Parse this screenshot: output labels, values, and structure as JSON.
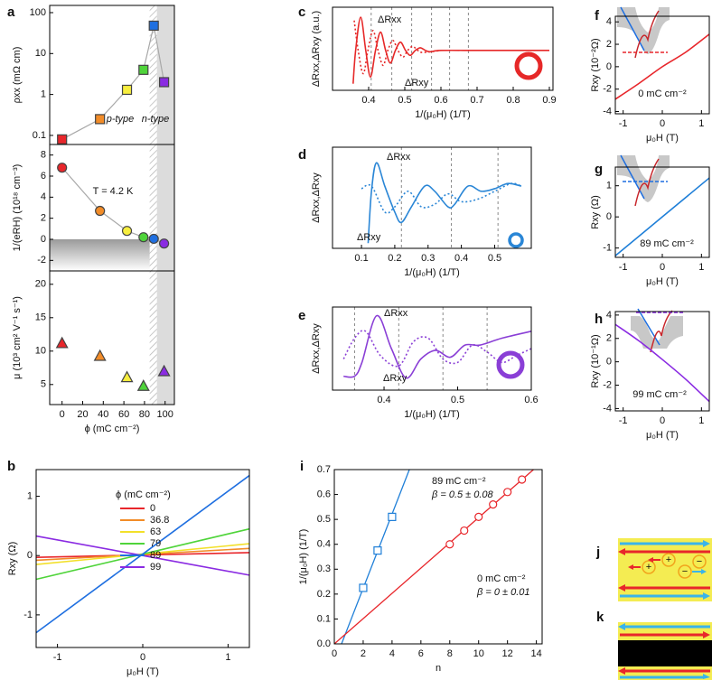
{
  "chart_data": [
    {
      "type": "scatter",
      "panel": "a",
      "ylabel": "ρxx (mΩ cm)",
      "log": true,
      "connect": true,
      "marker": "square",
      "x": [
        0,
        36.8,
        63,
        79,
        89,
        99
      ],
      "values": [
        0.08,
        0.25,
        1.3,
        4,
        48,
        2
      ],
      "colors": [
        "#e8262b",
        "#f28c28",
        "#f7ee3e",
        "#4fd43a",
        "#1f6fe0",
        "#8a2be2"
      ],
      "xlim": [
        -12,
        109
      ],
      "ylim": [
        0.06,
        150
      ],
      "yticks": [
        0.1,
        1,
        10,
        100
      ],
      "hatched": [
        85,
        92
      ],
      "shaded": [
        92,
        109
      ],
      "annotations": [
        "p-type",
        "n-type"
      ],
      "annotation_colors": [
        "#9c1c1c",
        "#1a2f8a"
      ]
    },
    {
      "type": "scatter",
      "ylabel": "1/(eRH) (10¹⁸ cm⁻³)",
      "connect": true,
      "marker": "circle",
      "x": [
        0,
        36.8,
        63,
        79,
        89,
        99
      ],
      "values": [
        6.8,
        2.7,
        0.8,
        0.2,
        0.05,
        -0.4
      ],
      "colors": [
        "#e8262b",
        "#f28c28",
        "#f7ee3e",
        "#4fd43a",
        "#1f6fe0",
        "#8a2be2"
      ],
      "xlim": [
        -12,
        109
      ],
      "ylim": [
        -3,
        9
      ],
      "yticks": [
        -2,
        0,
        2,
        4,
        6,
        8
      ],
      "hatched": [
        85,
        92
      ],
      "shaded": [
        92,
        109
      ],
      "annotations": [
        "T = 4.2 K"
      ]
    },
    {
      "type": "scatter",
      "ylabel": "μ (10³ cm² V⁻¹ s⁻¹)",
      "xlabel": "ϕ (mC cm⁻²)",
      "marker": "triangle",
      "x": [
        0,
        36.8,
        63,
        79,
        89,
        99
      ],
      "values": [
        11.2,
        9.3,
        6.1,
        4.8,
        null,
        7
      ],
      "colors": [
        "#e8262b",
        "#f28c28",
        "#f7ee3e",
        "#4fd43a",
        "#1f6fe0",
        "#8a2be2"
      ],
      "xlim": [
        -12,
        109
      ],
      "xticks": [
        0,
        20,
        40,
        60,
        80,
        100
      ],
      "ylim": [
        2,
        22
      ],
      "yticks": [
        5,
        10,
        15,
        20
      ],
      "hatched": [
        85,
        92
      ],
      "shaded": [
        92,
        109
      ]
    },
    {
      "type": "line",
      "panel": "c",
      "xlabel": "1/(μ₀H) (1/T)",
      "ylabel": "ΔRxx,ΔRxy (a.u.)",
      "xlim": [
        0.3,
        0.91
      ],
      "xticks": [
        0.4,
        0.5,
        0.6,
        0.7,
        0.8,
        0.9
      ],
      "ylim": [
        -1.2,
        1.3
      ],
      "guides": [
        0.407,
        0.464,
        0.519,
        0.574,
        0.624,
        0.676
      ],
      "series": [
        {
          "name": "ΔRxx",
          "color": "#e62828",
          "style": "solid",
          "x": [
            0.357,
            0.364,
            0.378,
            0.392,
            0.405,
            0.419,
            0.433,
            0.447,
            0.46,
            0.474,
            0.488,
            0.502,
            0.515,
            0.529,
            0.543,
            0.557,
            0.57,
            0.6,
            0.7,
            0.8,
            0.9
          ],
          "values": [
            -1.0,
            0,
            1.0,
            0,
            -0.8,
            0,
            0.55,
            0,
            -0.38,
            0,
            0.25,
            0,
            -0.15,
            0,
            0.08,
            0,
            -0.04,
            0,
            0,
            0,
            0
          ]
        },
        {
          "name": "ΔRxy",
          "color": "#e62828",
          "style": "dotted",
          "x": [
            0.36,
            0.371,
            0.385,
            0.398,
            0.412,
            0.426,
            0.44,
            0.453,
            0.467,
            0.481,
            0.495,
            0.508,
            0.522,
            0.536,
            0.55,
            0.6
          ],
          "values": [
            0.9,
            0,
            -0.7,
            0,
            0.6,
            0,
            -0.45,
            0,
            0.3,
            0,
            -0.2,
            0,
            0.12,
            0,
            -0.06,
            0
          ]
        }
      ]
    },
    {
      "type": "line",
      "panel": "d",
      "xlabel": "1/(μ₀H) (1/T)",
      "ylabel": "ΔRxx,ΔRxy",
      "xlim": [
        0.013,
        0.61
      ],
      "xticks": [
        0.1,
        0.2,
        0.3,
        0.4,
        0.5
      ],
      "ylim": [
        -1.1,
        0.85
      ],
      "guides": [
        0.22,
        0.37,
        0.51
      ],
      "series": [
        {
          "name": "ΔRxx",
          "color": "#2a86d6",
          "style": "solid",
          "x": [
            0.12,
            0.13,
            0.145,
            0.17,
            0.2,
            0.22,
            0.25,
            0.29,
            0.32,
            0.36,
            0.38,
            0.42,
            0.46,
            0.5,
            0.54,
            0.58
          ],
          "values": [
            -1.0,
            0,
            0.55,
            0.1,
            -0.4,
            -0.6,
            -0.3,
            0.1,
            0,
            -0.3,
            -0.25,
            0.1,
            0,
            0.05,
            0.15,
            0.1
          ]
        },
        {
          "name": "ΔRxy",
          "color": "#2a86d6",
          "style": "dotted",
          "x": [
            0.1,
            0.13,
            0.17,
            0.2,
            0.24,
            0.28,
            0.32,
            0.36,
            0.4,
            0.45,
            0.5,
            0.55,
            0.58
          ],
          "values": [
            0.05,
            0.1,
            -0.4,
            -0.3,
            0,
            -0.3,
            -0.25,
            -0.05,
            -0.2,
            -0.15,
            0,
            0.15,
            0.1
          ]
        }
      ]
    },
    {
      "type": "line",
      "panel": "e",
      "xlabel": "1/(μ₀H) (1/T)",
      "ylabel": "ΔRxx,ΔRxy",
      "xlim": [
        0.33,
        0.6
      ],
      "xticks": [
        0.4,
        0.5,
        0.6
      ],
      "ylim": [
        -1.2,
        1.2
      ],
      "guides": [
        0.36,
        0.42,
        0.48,
        0.54
      ],
      "series": [
        {
          "name": "ΔRxx",
          "color": "#8a3fd6",
          "style": "solid",
          "x": [
            0.345,
            0.36,
            0.37,
            0.39,
            0.41,
            0.43,
            0.45,
            0.47,
            0.49,
            0.51,
            0.53,
            0.56,
            0.6
          ],
          "values": [
            -0.8,
            -0.8,
            -0.4,
            0.95,
            0,
            -0.85,
            -0.3,
            -0.05,
            -0.25,
            0.1,
            0.1,
            0.3,
            0.5
          ]
        },
        {
          "name": "ΔRxy",
          "color": "#8a3fd6",
          "style": "dotted",
          "x": [
            0.345,
            0.36,
            0.375,
            0.395,
            0.42,
            0.44,
            0.46,
            0.48,
            0.5,
            0.52,
            0.54,
            0.56,
            0.58,
            0.6
          ],
          "values": [
            -0.3,
            0.3,
            0.5,
            -0.2,
            -0.5,
            0.2,
            0.3,
            -0.3,
            -0.4,
            0.1,
            -0.1,
            -0.4,
            -0.2,
            0
          ]
        }
      ]
    },
    {
      "type": "line",
      "panel": "f",
      "xlabel": "μ₀H (T)",
      "ylabel": "Rxy (10⁻²Ω)",
      "xlim": [
        -1.2,
        1.2
      ],
      "xticks": [
        -1,
        0,
        1
      ],
      "ylim": [
        -4.2,
        4.5
      ],
      "yticks": [
        -4,
        -2,
        0,
        2,
        4
      ],
      "annotation": "0 mC cm⁻²",
      "series": [
        {
          "color": "#e8262b",
          "x": [
            -1.2,
            -0.6,
            0,
            0.6,
            1.2
          ],
          "values": [
            -2.9,
            -1.5,
            0,
            1.3,
            2.9
          ]
        }
      ]
    },
    {
      "type": "line",
      "panel": "g",
      "xlabel": "μ₀H (T)",
      "ylabel": "Rxy (Ω)",
      "xlim": [
        -1.2,
        1.2
      ],
      "xticks": [
        -1,
        0,
        1
      ],
      "ylim": [
        -1.3,
        1.6
      ],
      "yticks": [
        -1,
        0,
        1
      ],
      "annotation": "89 mC cm⁻²",
      "series": [
        {
          "color": "#1f7fd8",
          "x": [
            -1.2,
            1.2
          ],
          "values": [
            -1.25,
            1.25
          ]
        }
      ]
    },
    {
      "type": "line",
      "panel": "h",
      "xlabel": "μ₀H (T)",
      "ylabel": "Rxy (10⁻¹Ω)",
      "xlim": [
        -1.2,
        1.2
      ],
      "xticks": [
        -1,
        0,
        1
      ],
      "ylim": [
        -4.2,
        4.3
      ],
      "yticks": [
        -4,
        -2,
        0,
        2,
        4
      ],
      "annotation": "99 mC cm⁻²",
      "series": [
        {
          "color": "#8a2be2",
          "x": [
            -1.2,
            -0.6,
            0,
            0.6,
            1.2
          ],
          "values": [
            3.2,
            1.8,
            0.2,
            -1.5,
            -3.4
          ]
        }
      ]
    },
    {
      "type": "line",
      "panel": "b",
      "xlabel": "μ₀H (T)",
      "ylabel": "Rxy (Ω)",
      "xlim": [
        -1.25,
        1.25
      ],
      "xticks": [
        -1,
        0,
        1
      ],
      "ylim": [
        -1.55,
        1.45
      ],
      "yticks": [
        -1,
        0,
        1
      ],
      "legend_title": "ϕ (mC cm⁻²)",
      "x": [
        -1.25,
        1.25
      ],
      "series": [
        {
          "name": "0",
          "color": "#e8262b",
          "values": [
            -0.03,
            0.05
          ]
        },
        {
          "name": "36.8",
          "color": "#f28c28",
          "values": [
            -0.08,
            0.12
          ]
        },
        {
          "name": "63",
          "color": "#f2e02a",
          "values": [
            -0.15,
            0.2
          ]
        },
        {
          "name": "79",
          "color": "#4fd43a",
          "values": [
            -0.4,
            0.45
          ]
        },
        {
          "name": "89",
          "color": "#1f6fe0",
          "values": [
            -1.3,
            1.35
          ]
        },
        {
          "name": "99",
          "color": "#8a2be2",
          "values": [
            0.33,
            -0.33
          ]
        }
      ]
    },
    {
      "type": "scatter",
      "panel": "i",
      "xlabel": "n",
      "ylabel": "1/(μ₀H) (1/T)",
      "xlim": [
        0,
        14.4
      ],
      "xticks": [
        0,
        2,
        4,
        6,
        8,
        10,
        12,
        14
      ],
      "ylim": [
        0,
        0.7
      ],
      "yticks": [
        {
          "value": 0,
          "label": "0.0"
        },
        0.1,
        0.2,
        0.3,
        0.4,
        0.5,
        0.6,
        0.7
      ],
      "series": [
        {
          "name": "89 mC cm⁻²",
          "annotation": "β = 0.5 ± 0.08",
          "color": "#1f7fd8",
          "marker": "square",
          "x": [
            2,
            3,
            4
          ],
          "values": [
            0.225,
            0.375,
            0.51
          ],
          "fit": {
            "x": [
              0.5,
              5.2
            ],
            "values": [
              0,
              0.7
            ]
          }
        },
        {
          "name": "0 mC cm⁻²",
          "annotation": "β = 0 ± 0.01",
          "color": "#e8262b",
          "marker": "circle",
          "x": [
            8,
            9,
            10,
            11,
            12,
            13
          ],
          "values": [
            0.4,
            0.455,
            0.51,
            0.56,
            0.61,
            0.66
          ],
          "fit": {
            "x": [
              0,
              13.8
            ],
            "values": [
              0,
              0.7
            ]
          }
        }
      ]
    }
  ],
  "diagrams": [
    {
      "panel": "j"
    },
    {
      "panel": "k"
    }
  ]
}
